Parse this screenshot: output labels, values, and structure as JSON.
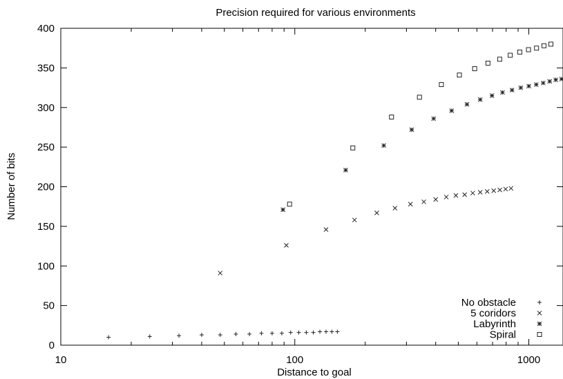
{
  "chart_data": {
    "type": "scatter",
    "title": "Precision required for various environments",
    "xlabel": "Distance to goal",
    "ylabel": "Number of bits",
    "xscale": "log",
    "xlim": [
      10,
      1400
    ],
    "ylim": [
      0,
      400
    ],
    "x_ticks": [
      10,
      100,
      1000
    ],
    "y_ticks": [
      0,
      50,
      100,
      150,
      200,
      250,
      300,
      350,
      400
    ],
    "grid": false,
    "legend_position": "bottom-right",
    "series": [
      {
        "name": "No obstacle",
        "marker": "plus",
        "points": [
          [
            16,
            10
          ],
          [
            24,
            11
          ],
          [
            32,
            12
          ],
          [
            40,
            13
          ],
          [
            48,
            13
          ],
          [
            56,
            14
          ],
          [
            64,
            14
          ],
          [
            72,
            15
          ],
          [
            80,
            15
          ],
          [
            88,
            15
          ],
          [
            96,
            16
          ],
          [
            104,
            16
          ],
          [
            112,
            16
          ],
          [
            120,
            16
          ],
          [
            128,
            17
          ],
          [
            136,
            17
          ],
          [
            144,
            17
          ],
          [
            152,
            17
          ]
        ]
      },
      {
        "name": "5 coridors",
        "marker": "cross",
        "points": [
          [
            48,
            91
          ],
          [
            92,
            126
          ],
          [
            136,
            146
          ],
          [
            180,
            158
          ],
          [
            224,
            167
          ],
          [
            268,
            173
          ],
          [
            312,
            178
          ],
          [
            356,
            181
          ],
          [
            400,
            184
          ],
          [
            444,
            187
          ],
          [
            488,
            189
          ],
          [
            532,
            190
          ],
          [
            576,
            192
          ],
          [
            620,
            193
          ],
          [
            664,
            194
          ],
          [
            708,
            195
          ],
          [
            752,
            196
          ],
          [
            796,
            197
          ],
          [
            840,
            198
          ]
        ]
      },
      {
        "name": "Labyrinth",
        "marker": "star",
        "points": [
          [
            89,
            171
          ],
          [
            165,
            221
          ],
          [
            240,
            252
          ],
          [
            316,
            272
          ],
          [
            392,
            286
          ],
          [
            468,
            296
          ],
          [
            544,
            304
          ],
          [
            620,
            310
          ],
          [
            696,
            315
          ],
          [
            772,
            319
          ],
          [
            848,
            322
          ],
          [
            924,
            325
          ],
          [
            1000,
            327
          ],
          [
            1076,
            329
          ],
          [
            1152,
            331
          ],
          [
            1228,
            333
          ],
          [
            1304,
            335
          ],
          [
            1380,
            336
          ]
        ]
      },
      {
        "name": "Spiral",
        "marker": "square",
        "points": [
          [
            95,
            178
          ],
          [
            177,
            249
          ],
          [
            259,
            288
          ],
          [
            341,
            313
          ],
          [
            423,
            329
          ],
          [
            505,
            341
          ],
          [
            587,
            349
          ],
          [
            669,
            356
          ],
          [
            751,
            361
          ],
          [
            833,
            366
          ],
          [
            915,
            370
          ],
          [
            997,
            373
          ],
          [
            1079,
            375
          ],
          [
            1161,
            378
          ],
          [
            1243,
            380
          ]
        ]
      }
    ]
  }
}
